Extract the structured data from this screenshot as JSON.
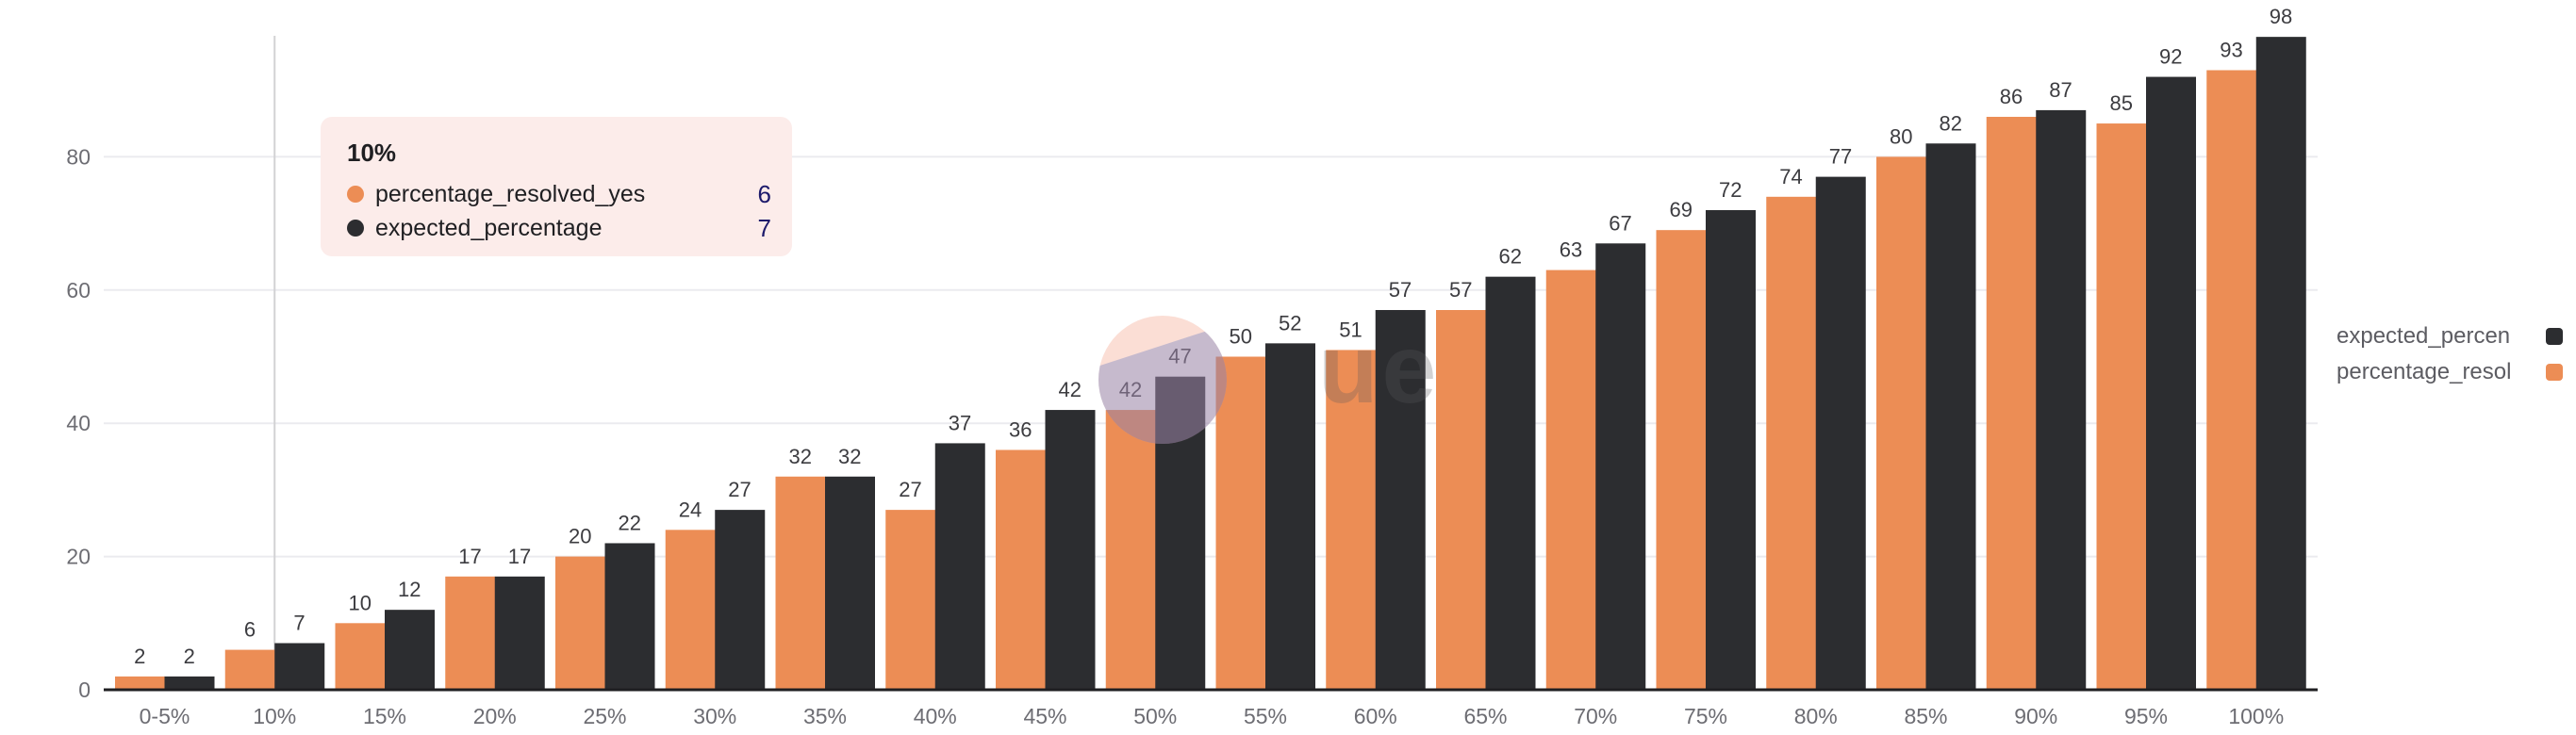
{
  "chart_data": {
    "type": "bar",
    "title": "",
    "xlabel": "",
    "ylabel": "",
    "ylim": [
      0,
      98
    ],
    "yticks": [
      "0",
      "20",
      "40",
      "60",
      "80"
    ],
    "grid": true,
    "legend_position": "right",
    "categories": [
      "0-5%",
      "10%",
      "15%",
      "20%",
      "25%",
      "30%",
      "35%",
      "40%",
      "45%",
      "50%",
      "55%",
      "60%",
      "65%",
      "70%",
      "75%",
      "80%",
      "85%",
      "90%",
      "95%",
      "100%"
    ],
    "series": [
      {
        "name": "percentage_resolved_yes",
        "legend_label": "percentage_resol",
        "color": "#EC8D55",
        "values": [
          2,
          6,
          10,
          17,
          20,
          24,
          32,
          27,
          36,
          42,
          50,
          51,
          57,
          63,
          69,
          74,
          80,
          86,
          85,
          93
        ]
      },
      {
        "name": "expected_percentage",
        "legend_label": "expected_percen",
        "color": "#2C2D30",
        "values": [
          2,
          7,
          12,
          17,
          22,
          27,
          32,
          37,
          42,
          47,
          52,
          57,
          62,
          67,
          72,
          77,
          82,
          87,
          92,
          98
        ]
      }
    ]
  },
  "tooltip": {
    "title": "10%",
    "rows": [
      {
        "label": "percentage_resolved_yes",
        "value": "6",
        "color": "#EC8D55"
      },
      {
        "label": "expected_percentage",
        "value": "7",
        "color": "#2C2D30"
      }
    ]
  },
  "legend": {
    "items": [
      {
        "label": "expected_percen",
        "color": "#2C2D30"
      },
      {
        "label": "percentage_resol",
        "color": "#EC8D55"
      }
    ]
  },
  "watermark": {
    "text": "ue"
  }
}
